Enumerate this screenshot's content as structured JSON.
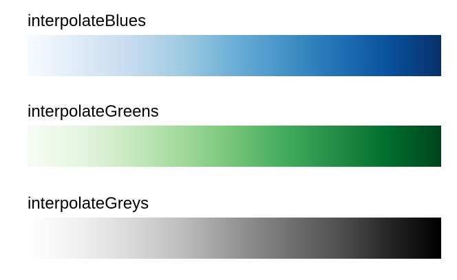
{
  "scales": [
    {
      "label": "interpolateBlues",
      "colors": [
        "#f7fbff",
        "#deebf7",
        "#c6dbef",
        "#9ecae1",
        "#6baed6",
        "#4292c6",
        "#2171b5",
        "#08519c",
        "#08306b"
      ]
    },
    {
      "label": "interpolateGreens",
      "colors": [
        "#f7fcf5",
        "#e5f5e0",
        "#c7e9c0",
        "#a1d99b",
        "#74c476",
        "#41ab5d",
        "#238b45",
        "#006d2c",
        "#00441b"
      ]
    },
    {
      "label": "interpolateGreys",
      "colors": [
        "#ffffff",
        "#f0f0f0",
        "#d9d9d9",
        "#bdbdbd",
        "#969696",
        "#737373",
        "#525252",
        "#252525",
        "#000000"
      ]
    }
  ]
}
